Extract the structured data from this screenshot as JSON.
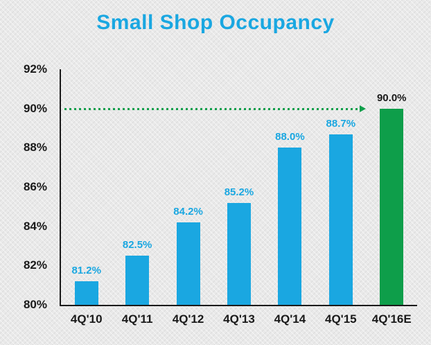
{
  "chart_data": {
    "type": "bar",
    "title": "Small Shop Occupancy",
    "categories": [
      "4Q'10",
      "4Q'11",
      "4Q'12",
      "4Q'13",
      "4Q'14",
      "4Q'15",
      "4Q'16E"
    ],
    "values": [
      81.2,
      82.5,
      84.2,
      85.2,
      88.0,
      88.7,
      90.0
    ],
    "value_labels": [
      "81.2%",
      "82.5%",
      "84.2%",
      "85.2%",
      "88.0%",
      "88.7%",
      "90.0%"
    ],
    "ylim": [
      80,
      92
    ],
    "ytick_step": 2,
    "ytick_labels": [
      "80%",
      "82%",
      "84%",
      "86%",
      "88%",
      "90%",
      "92%"
    ],
    "xlabel": "",
    "ylabel": "",
    "grid": "off",
    "legend": "none",
    "target_line": {
      "value": 90,
      "style": "dotted-arrow"
    },
    "colors": {
      "title_blue": "#1aa7e1",
      "bar_blue": "#1aa7e1",
      "bar_green": "#0e9e4a",
      "target_green": "#0e9e4a",
      "label_dark": "#1a1a1a",
      "axis_dark": "#1a1a1a"
    },
    "bar_colors": [
      "#1aa7e1",
      "#1aa7e1",
      "#1aa7e1",
      "#1aa7e1",
      "#1aa7e1",
      "#1aa7e1",
      "#0e9e4a"
    ],
    "value_label_colors": [
      "#1aa7e1",
      "#1aa7e1",
      "#1aa7e1",
      "#1aa7e1",
      "#1aa7e1",
      "#1aa7e1",
      "#1a1a1a"
    ]
  }
}
